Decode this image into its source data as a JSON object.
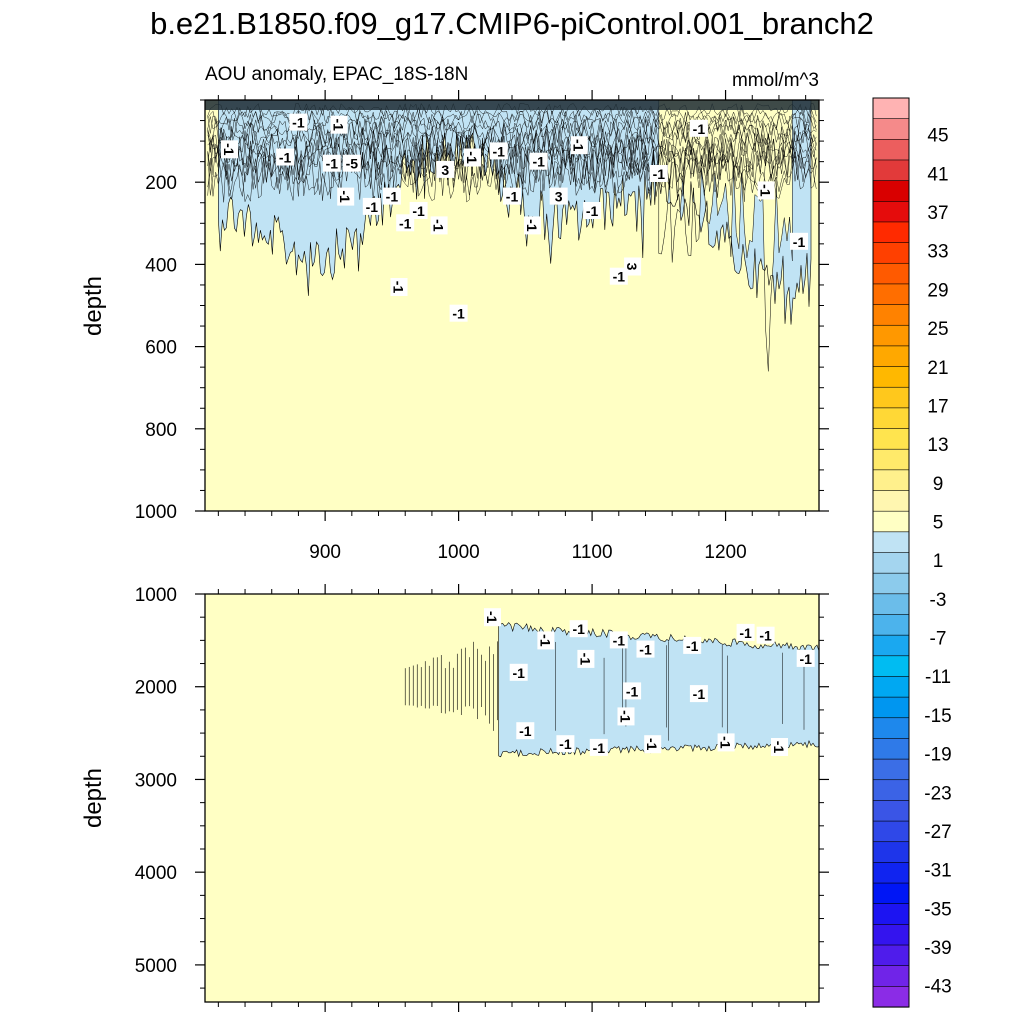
{
  "title": "b.e21.B1850.f09_g17.CMIP6-piControl.001_branch2",
  "subtitle_left": "AOU anomaly, EPAC_18S-18N",
  "subtitle_right": "mmol/m^3",
  "colors": {
    "positive_fill": "#ffffc4",
    "negative_fill": "#c0e3f4",
    "contour_line": "#000000"
  },
  "chart_data": [
    {
      "type": "heatmap",
      "panel": "top",
      "xlabel": "",
      "ylabel": "depth",
      "xlim": [
        810,
        1270
      ],
      "ylim": [
        1000,
        0
      ],
      "y_reversed": true,
      "xticks": [
        900,
        1000,
        1100,
        1200
      ],
      "yticks": [
        200,
        400,
        600,
        800,
        1000
      ],
      "regions": [
        {
          "level": -1,
          "x_range": [
            820,
            1265
          ],
          "depth_range": [
            0,
            600
          ]
        },
        {
          "level": 3,
          "x_range": [
            1150,
            1250
          ],
          "depth_range": [
            0,
            700
          ]
        }
      ],
      "contour_labels": [
        "-1",
        "-1",
        "-1",
        "-1",
        "-1",
        "-5",
        "-1",
        "-1",
        "-1",
        "-1",
        "-1",
        "-1",
        "-1",
        "3",
        "-1",
        "-1",
        "-1",
        "-1",
        "-1",
        "-1",
        "3",
        "-1",
        "-1",
        "-1",
        "3",
        "-1",
        "-1",
        "-1",
        "-1"
      ]
    },
    {
      "type": "heatmap",
      "panel": "bottom",
      "xlabel": "",
      "ylabel": "depth",
      "xlim": [
        810,
        1270
      ],
      "ylim": [
        5400,
        1000
      ],
      "y_reversed": true,
      "xticks": [
        900,
        1000,
        1100,
        1200
      ],
      "yticks": [
        1000,
        2000,
        3000,
        4000,
        5000
      ],
      "regions": [
        {
          "level": -1,
          "x_range": [
            1030,
            1270
          ],
          "depth_range": [
            1400,
            2650
          ]
        },
        {
          "level": -1,
          "x_range": [
            960,
            1030
          ],
          "depth_range": [
            1700,
            2300
          ]
        }
      ],
      "contour_labels": [
        "-1",
        "-1",
        "-1",
        "-1",
        "-1",
        "-1",
        "-1",
        "-1",
        "-1",
        "-1",
        "-1",
        "-1",
        "-1",
        "-1",
        "-1",
        "-1",
        "-1",
        "-1",
        "-1",
        "-1"
      ]
    }
  ],
  "colorbar": {
    "labels": [
      "45",
      "41",
      "37",
      "33",
      "29",
      "25",
      "21",
      "17",
      "13",
      "9",
      "5",
      "1",
      "-3",
      "-7",
      "-11",
      "-15",
      "-19",
      "-23",
      "-27",
      "-31",
      "-35",
      "-39",
      "-43"
    ],
    "colors": [
      "#ffb3b3",
      "#f58a8a",
      "#ec5e5e",
      "#e23a3a",
      "#d90000",
      "#e50c0c",
      "#ff2a00",
      "#ff4000",
      "#ff5a00",
      "#ff6e00",
      "#ff8200",
      "#ff9800",
      "#ffa800",
      "#ffb800",
      "#ffc81c",
      "#ffd836",
      "#ffe44e",
      "#ffea6a",
      "#fff08c",
      "#fff6b0",
      "#ffffc4",
      "#c0e3f4",
      "#a4d5ef",
      "#8ccbec",
      "#6bbdea",
      "#4cb3ec",
      "#1aa8f0",
      "#00bcf2",
      "#00a8f2",
      "#0096f0",
      "#1e88ec",
      "#2f7ae8",
      "#3b6ee6",
      "#3b63e6",
      "#3a55e6",
      "#2f48e8",
      "#1e35ea",
      "#1024f0",
      "#0016f5",
      "#1c14f2",
      "#3414ee",
      "#4f1ceb",
      "#7024e8",
      "#8b2ce6"
    ]
  }
}
